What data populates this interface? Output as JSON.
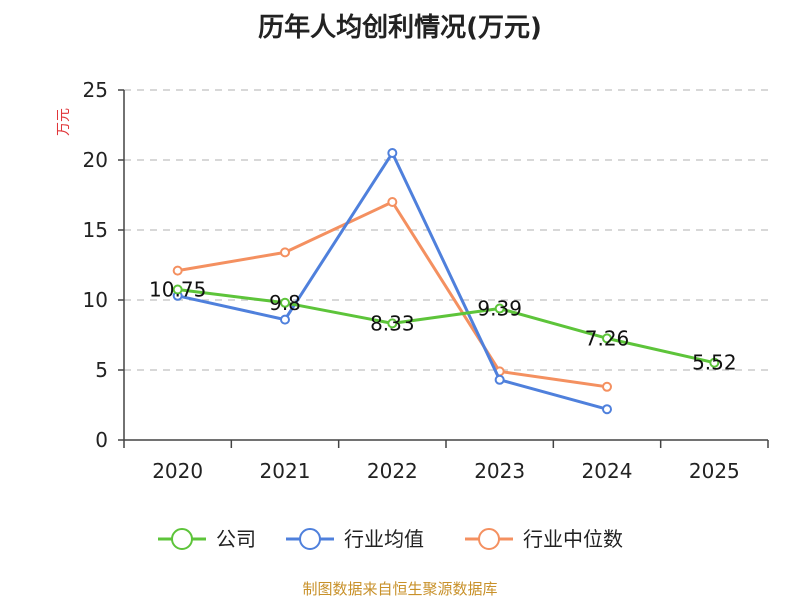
{
  "chart_data": {
    "type": "line",
    "title": "历年人均创利情况(万元)",
    "ylabel": "万元",
    "xlabel": "",
    "categories": [
      "2020",
      "2021",
      "2022",
      "2023",
      "2024",
      "2025"
    ],
    "ylim": [
      0,
      25
    ],
    "yticks": [
      0,
      5,
      10,
      15,
      20,
      25
    ],
    "grid": true,
    "legend_position": "bottom",
    "series": [
      {
        "name": "公司",
        "color": "#5dc43a",
        "values": [
          10.75,
          9.8,
          8.33,
          9.39,
          7.26,
          5.52
        ],
        "labels": [
          "10.75",
          "9.8",
          "8.33",
          "9.39",
          "7.26",
          "5.52"
        ]
      },
      {
        "name": "行业均值",
        "color": "#4f80dc",
        "values": [
          10.3,
          8.6,
          20.5,
          4.3,
          2.2,
          null
        ]
      },
      {
        "name": "行业中位数",
        "color": "#f49060",
        "values": [
          12.1,
          13.4,
          17.0,
          4.9,
          3.8,
          null
        ]
      }
    ],
    "source": "制图数据来自恒生聚源数据库"
  }
}
